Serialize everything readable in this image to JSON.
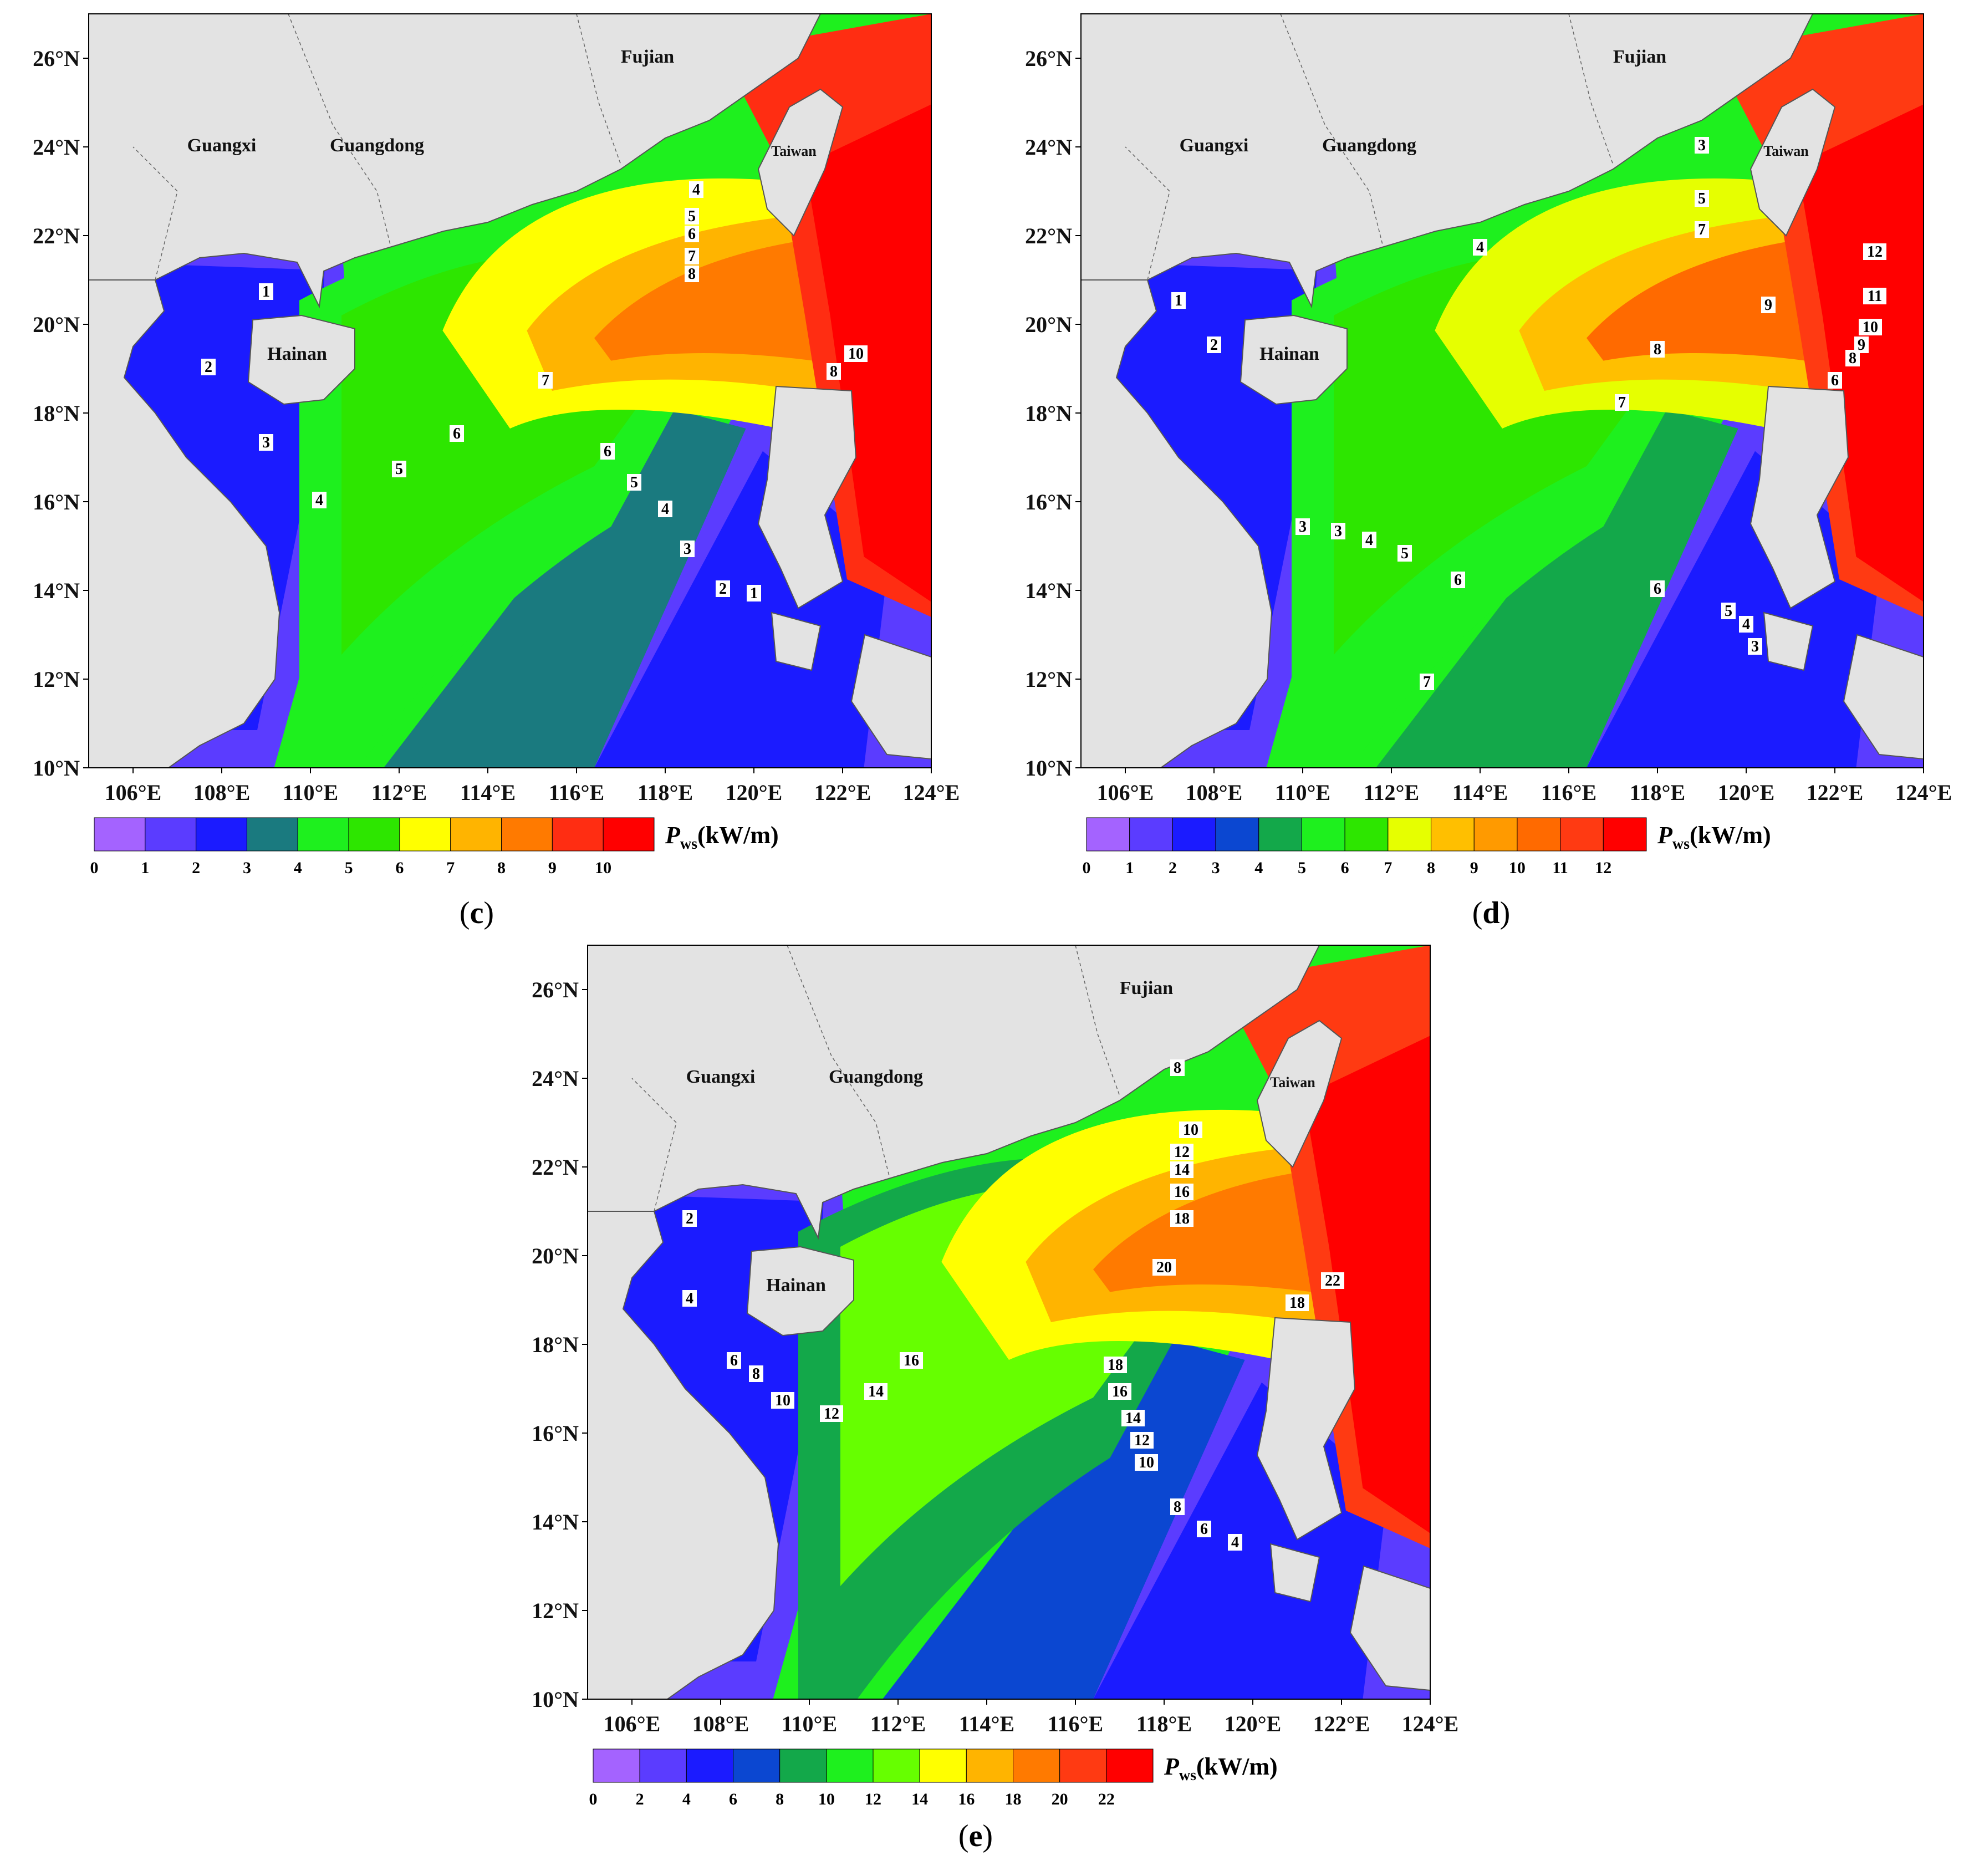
{
  "colors": {
    "land": "#e3e3e3",
    "band_c": [
      "#a463ff",
      "#5b3cff",
      "#1b1bff",
      "#1a7a7f",
      "#1ef01e",
      "#2de600",
      "#ffff00",
      "#ffb400",
      "#ff7a00",
      "#ff2d12",
      "#ff0000"
    ],
    "band_d": [
      "#a463ff",
      "#5b3cff",
      "#1b1bff",
      "#0b47d1",
      "#13a84a",
      "#1ef01e",
      "#2de600",
      "#e6ff00",
      "#ffbf00",
      "#ff9a00",
      "#ff6a00",
      "#ff3a12",
      "#ff0000"
    ],
    "band_e": [
      "#a463ff",
      "#5b3cff",
      "#1b1bff",
      "#0b47d1",
      "#13a84a",
      "#1ef01e",
      "#66ff00",
      "#ffff00",
      "#ffb400",
      "#ff7a00",
      "#ff3a12",
      "#ff0000"
    ]
  },
  "chart_data": [
    {
      "type": "heatmap",
      "panel": "(c)",
      "caption_letter": "c",
      "quantity": "P",
      "quantity_sub": "ws",
      "unit": "(kW/m)",
      "x_ticks": [
        "106°E",
        "108°E",
        "110°E",
        "112°E",
        "114°E",
        "116°E",
        "118°E",
        "120°E",
        "122°E",
        "124°E"
      ],
      "y_ticks": [
        "10°N",
        "12°N",
        "14°N",
        "16°N",
        "18°N",
        "20°N",
        "22°N",
        "24°N",
        "26°N"
      ],
      "xlim": [
        105,
        124
      ],
      "ylim": [
        10,
        27
      ],
      "regions": [
        "Guangxi",
        "Guangdong",
        "Fujian",
        "Taiwan",
        "Hainan"
      ],
      "legend_ticks": [
        "0",
        "1",
        "2",
        "3",
        "4",
        "5",
        "6",
        "7",
        "8",
        "9",
        "10"
      ],
      "contours": [
        {
          "value": "1",
          "lon": 109.0,
          "lat": 20.7
        },
        {
          "value": "2",
          "lon": 107.7,
          "lat": 19.0
        },
        {
          "value": "3",
          "lon": 109.0,
          "lat": 17.3
        },
        {
          "value": "4",
          "lon": 110.2,
          "lat": 16.0
        },
        {
          "value": "5",
          "lon": 112.0,
          "lat": 16.7
        },
        {
          "value": "6",
          "lon": 113.3,
          "lat": 17.5
        },
        {
          "value": "7",
          "lon": 115.3,
          "lat": 18.7
        },
        {
          "value": "6",
          "lon": 116.7,
          "lat": 17.1
        },
        {
          "value": "5",
          "lon": 117.3,
          "lat": 16.4
        },
        {
          "value": "4",
          "lon": 118.0,
          "lat": 15.8
        },
        {
          "value": "3",
          "lon": 118.5,
          "lat": 14.9
        },
        {
          "value": "2",
          "lon": 119.3,
          "lat": 14.0
        },
        {
          "value": "1",
          "lon": 120.0,
          "lat": 13.9
        },
        {
          "value": "4",
          "lon": 118.7,
          "lat": 23.0
        },
        {
          "value": "5",
          "lon": 118.6,
          "lat": 22.4
        },
        {
          "value": "6",
          "lon": 118.6,
          "lat": 22.0
        },
        {
          "value": "7",
          "lon": 118.6,
          "lat": 21.5
        },
        {
          "value": "8",
          "lon": 118.6,
          "lat": 21.1
        },
        {
          "value": "8",
          "lon": 121.8,
          "lat": 18.9
        },
        {
          "value": "10",
          "lon": 122.3,
          "lat": 19.3
        }
      ]
    },
    {
      "type": "heatmap",
      "panel": "(d)",
      "caption_letter": "d",
      "quantity": "P",
      "quantity_sub": "ws",
      "unit": "(kW/m)",
      "x_ticks": [
        "106°E",
        "108°E",
        "110°E",
        "112°E",
        "114°E",
        "116°E",
        "118°E",
        "120°E",
        "122°E",
        "124°E"
      ],
      "y_ticks": [
        "10°N",
        "12°N",
        "14°N",
        "16°N",
        "18°N",
        "20°N",
        "22°N",
        "24°N",
        "26°N"
      ],
      "xlim": [
        105,
        124
      ],
      "ylim": [
        10,
        27
      ],
      "regions": [
        "Guangxi",
        "Guangdong",
        "Fujian",
        "Taiwan",
        "Hainan"
      ],
      "legend_ticks": [
        "0",
        "1",
        "2",
        "3",
        "4",
        "5",
        "6",
        "7",
        "8",
        "9",
        "10",
        "11",
        "12"
      ],
      "contours": [
        {
          "value": "1",
          "lon": 107.2,
          "lat": 20.5
        },
        {
          "value": "2",
          "lon": 108.0,
          "lat": 19.5
        },
        {
          "value": "3",
          "lon": 110.0,
          "lat": 15.4
        },
        {
          "value": "3",
          "lon": 110.8,
          "lat": 15.3
        },
        {
          "value": "4",
          "lon": 111.5,
          "lat": 15.1
        },
        {
          "value": "5",
          "lon": 112.3,
          "lat": 14.8
        },
        {
          "value": "6",
          "lon": 113.5,
          "lat": 14.2
        },
        {
          "value": "7",
          "lon": 112.8,
          "lat": 11.9
        },
        {
          "value": "4",
          "lon": 114.0,
          "lat": 21.7
        },
        {
          "value": "3",
          "lon": 119.0,
          "lat": 24.0
        },
        {
          "value": "5",
          "lon": 119.0,
          "lat": 22.8
        },
        {
          "value": "7",
          "lon": 119.0,
          "lat": 22.1
        },
        {
          "value": "8",
          "lon": 118.0,
          "lat": 19.4
        },
        {
          "value": "7",
          "lon": 117.2,
          "lat": 18.2
        },
        {
          "value": "9",
          "lon": 120.5,
          "lat": 20.4
        },
        {
          "value": "6",
          "lon": 118.0,
          "lat": 14.0
        },
        {
          "value": "5",
          "lon": 119.6,
          "lat": 13.5
        },
        {
          "value": "4",
          "lon": 120.0,
          "lat": 13.2
        },
        {
          "value": "3",
          "lon": 120.2,
          "lat": 12.7
        },
        {
          "value": "6",
          "lon": 122.0,
          "lat": 18.7
        },
        {
          "value": "8",
          "lon": 122.4,
          "lat": 19.2
        },
        {
          "value": "9",
          "lon": 122.6,
          "lat": 19.5
        },
        {
          "value": "10",
          "lon": 122.8,
          "lat": 19.9
        },
        {
          "value": "11",
          "lon": 122.9,
          "lat": 20.6
        },
        {
          "value": "12",
          "lon": 122.9,
          "lat": 21.6
        }
      ]
    },
    {
      "type": "heatmap",
      "panel": "(e)",
      "caption_letter": "e",
      "quantity": "P",
      "quantity_sub": "ws",
      "unit": "(kW/m)",
      "x_ticks": [
        "106°E",
        "108°E",
        "110°E",
        "112°E",
        "114°E",
        "116°E",
        "118°E",
        "120°E",
        "122°E",
        "124°E"
      ],
      "y_ticks": [
        "10°N",
        "12°N",
        "14°N",
        "16°N",
        "18°N",
        "20°N",
        "22°N",
        "24°N",
        "26°N"
      ],
      "xlim": [
        105,
        124
      ],
      "ylim": [
        10,
        27
      ],
      "regions": [
        "Guangxi",
        "Guangdong",
        "Fujian",
        "Taiwan",
        "Hainan"
      ],
      "legend_ticks": [
        "0",
        "2",
        "4",
        "6",
        "8",
        "10",
        "12",
        "14",
        "16",
        "18",
        "20",
        "22"
      ],
      "contours": [
        {
          "value": "2",
          "lon": 107.3,
          "lat": 20.8
        },
        {
          "value": "4",
          "lon": 107.3,
          "lat": 19.0
        },
        {
          "value": "6",
          "lon": 108.3,
          "lat": 17.6
        },
        {
          "value": "8",
          "lon": 108.8,
          "lat": 17.3
        },
        {
          "value": "10",
          "lon": 109.4,
          "lat": 16.7
        },
        {
          "value": "12",
          "lon": 110.5,
          "lat": 16.4
        },
        {
          "value": "14",
          "lon": 111.5,
          "lat": 16.9
        },
        {
          "value": "16",
          "lon": 112.3,
          "lat": 17.6
        },
        {
          "value": "8",
          "lon": 118.3,
          "lat": 24.2
        },
        {
          "value": "10",
          "lon": 118.6,
          "lat": 22.8
        },
        {
          "value": "12",
          "lon": 118.4,
          "lat": 22.3
        },
        {
          "value": "14",
          "lon": 118.4,
          "lat": 21.9
        },
        {
          "value": "16",
          "lon": 118.4,
          "lat": 21.4
        },
        {
          "value": "18",
          "lon": 118.4,
          "lat": 20.8
        },
        {
          "value": "20",
          "lon": 118.0,
          "lat": 19.7
        },
        {
          "value": "18",
          "lon": 116.9,
          "lat": 17.5
        },
        {
          "value": "16",
          "lon": 117.0,
          "lat": 16.9
        },
        {
          "value": "14",
          "lon": 117.3,
          "lat": 16.3
        },
        {
          "value": "12",
          "lon": 117.5,
          "lat": 15.8
        },
        {
          "value": "10",
          "lon": 117.6,
          "lat": 15.3
        },
        {
          "value": "8",
          "lon": 118.3,
          "lat": 14.3
        },
        {
          "value": "6",
          "lon": 118.9,
          "lat": 13.8
        },
        {
          "value": "4",
          "lon": 119.6,
          "lat": 13.5
        },
        {
          "value": "18",
          "lon": 121.0,
          "lat": 18.9
        },
        {
          "value": "22",
          "lon": 121.8,
          "lat": 19.4
        }
      ]
    }
  ]
}
